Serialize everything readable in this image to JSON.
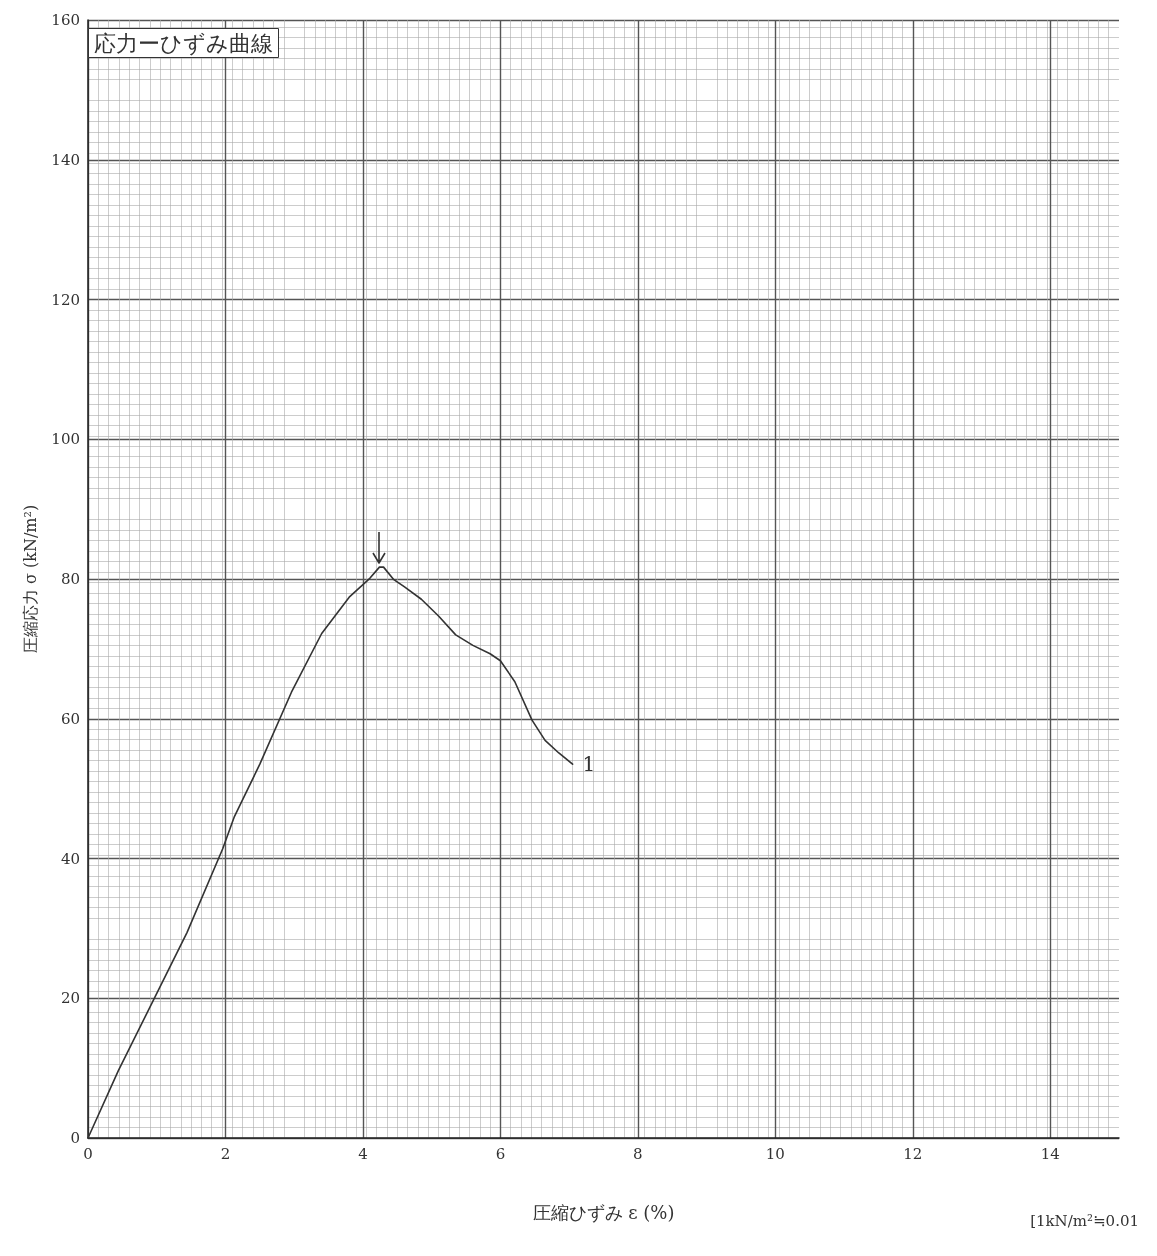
{
  "chart_data": {
    "type": "line",
    "title": "応力ーひずみ曲線",
    "xlabel": "圧縮ひずみ ε (%)",
    "ylabel": "圧縮応力 σ (kN/m²)",
    "xlim": [
      0,
      15
    ],
    "ylim": [
      0,
      160
    ],
    "xticks": [
      0,
      2,
      4,
      6,
      8,
      10,
      12,
      14
    ],
    "yticks": [
      0,
      20,
      40,
      60,
      80,
      100,
      120,
      140,
      160
    ],
    "grid": true,
    "marker": "none",
    "line_style": "solid",
    "annotations": [
      "[1kN/m²≒0.01"
    ],
    "series": [
      {
        "name": "1",
        "color": "#333333",
        "x": [
          0,
          0.44,
          0.95,
          1.44,
          1.96,
          2.13,
          2.5,
          2.96,
          3.4,
          3.8,
          4.1,
          4.24,
          4.3,
          4.45,
          4.6,
          4.85,
          5.1,
          5.35,
          5.6,
          5.85,
          6.0,
          6.21,
          6.46,
          6.65,
          6.85,
          7.05
        ],
        "values": [
          0,
          9.6,
          19.7,
          29.4,
          41.4,
          46,
          53.5,
          63.8,
          72.2,
          77.4,
          80.1,
          81.7,
          81.7,
          79.9,
          78.9,
          77.1,
          74.7,
          72,
          70.5,
          69.3,
          68.3,
          65.3,
          59.8,
          56.9,
          55.1,
          53.5
        ]
      }
    ]
  }
}
